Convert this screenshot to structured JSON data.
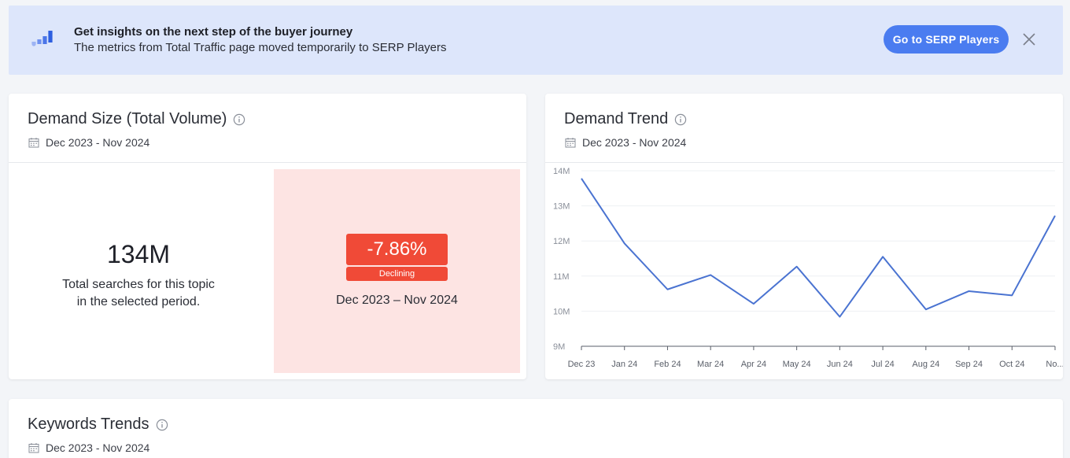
{
  "banner": {
    "icon": "bar-chart-icon",
    "title": "Get insights on the next step of the buyer journey",
    "subtitle": "The metrics from Total Traffic page moved temporarily to SERP Players",
    "cta_label": "Go to SERP Players",
    "close_icon": "close-icon"
  },
  "demand_size": {
    "title": "Demand Size (Total Volume)",
    "date_range": "Dec 2023 - Nov 2024",
    "total": "134M",
    "description_line1": "Total searches for this topic",
    "description_line2": "in the selected period.",
    "change": "-7.86%",
    "status": "Declining",
    "period": "Dec 2023 – Nov 2024",
    "colors": {
      "panel_bg": "#fde4e3",
      "badge": "#f04a37"
    }
  },
  "demand_trend": {
    "title": "Demand Trend",
    "date_range": "Dec 2023 - Nov 2024"
  },
  "keywords_trends": {
    "title": "Keywords Trends",
    "date_range": "Dec 2023 - Nov 2024"
  },
  "chart_data": {
    "type": "line",
    "categories": [
      "Dec 23",
      "Jan 24",
      "Feb 24",
      "Mar 24",
      "Apr 24",
      "May 24",
      "Jun 24",
      "Jul 24",
      "Aug 24",
      "Sep 24",
      "Oct 24",
      "No..."
    ],
    "series": [
      {
        "values": [
          13.78,
          11.93,
          10.62,
          11.03,
          10.21,
          11.27,
          9.84,
          11.55,
          10.05,
          10.57,
          10.45,
          12.72
        ]
      }
    ],
    "y_ticks": [
      "9M",
      "10M",
      "11M",
      "12M",
      "13M",
      "14M"
    ],
    "ylim": [
      9,
      14
    ],
    "grid": true,
    "line_color": "#4a73d1"
  }
}
